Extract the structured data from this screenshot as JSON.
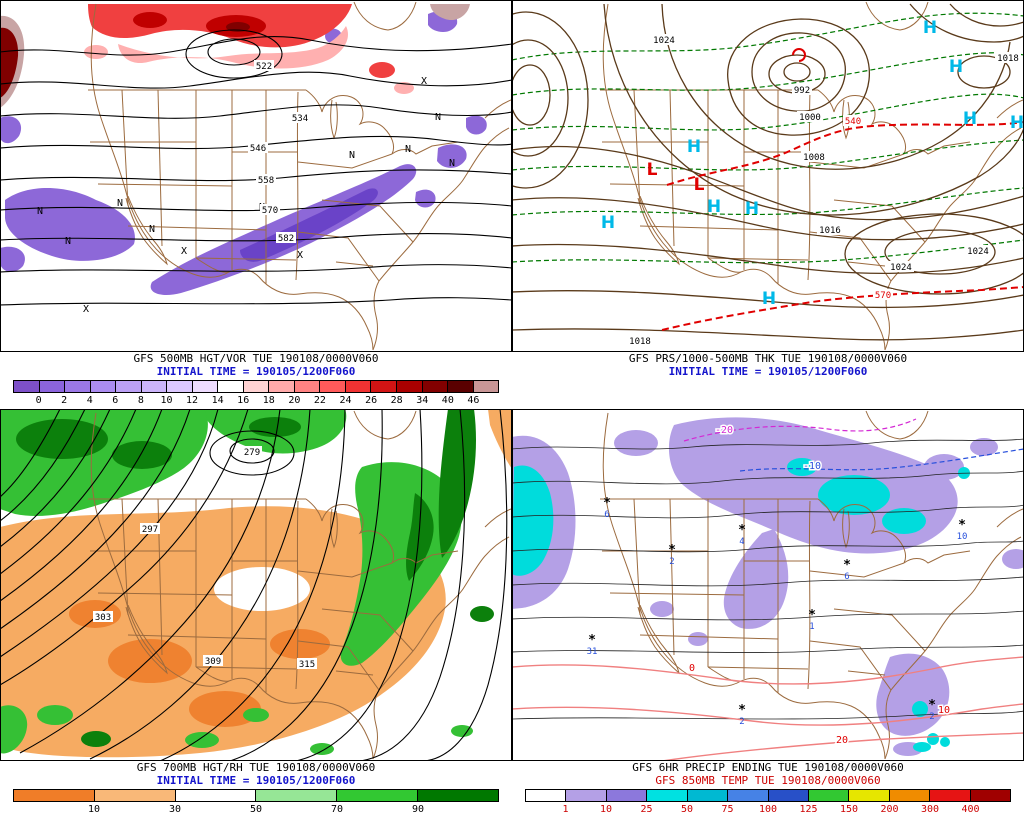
{
  "palette": {
    "map_outline": "#9c6b3f",
    "height_contour": "#000000",
    "isobar_brown": "#5a3a1a",
    "thickness_green": "#007800",
    "thickness_red": "#e00000",
    "vorticity_purple": "#8d68d8",
    "vorticity_red": "#f04040",
    "vorticity_dark_red": "#800000",
    "rh_orange": "#f6ab62",
    "rh_green": "#35c035",
    "precip_purple": "#b4a0e6",
    "precip_cyan": "#00dcdc",
    "warm_isotherm_pink": "#f08080",
    "cold_isotherm_blue": "#2850dc",
    "cold_isotherm_magenta": "#d428d4",
    "initial_time_blue": "#1414cc",
    "high_symbol_cyan": "#00b9e8",
    "low_symbol_red": "#e00000",
    "temp_title_red": "#cc0000"
  },
  "panels": [
    {
      "name": "500mb-height-vorticity",
      "title": "GFS 500MB HGT/VOR TUE 190108/0000V060",
      "initial_time": "INITIAL TIME = 190105/1200F060",
      "height_labels": [
        "522",
        "534",
        "546",
        "558",
        "570",
        "582"
      ],
      "symbol_min": "N",
      "symbol_max": "X",
      "colorbar": {
        "labels": [
          "0",
          "2",
          "4",
          "6",
          "8",
          "10",
          "12",
          "14",
          "16",
          "18",
          "20",
          "22",
          "24",
          "26",
          "28",
          "34",
          "40",
          "46"
        ],
        "colors": [
          "#7d50c8",
          "#8b64dc",
          "#9b78e6",
          "#ab8cf0",
          "#bba0f5",
          "#cbb4fa",
          "#dcc8ff",
          "#eedcff",
          "#ffffff",
          "#ffd2d2",
          "#ffaaaa",
          "#ff8282",
          "#ff5a5a",
          "#f03232",
          "#d21414",
          "#aa0000",
          "#820000",
          "#5a0000",
          "#c89696"
        ],
        "label_color": "#000000"
      }
    },
    {
      "name": "mslp-1000-500-thickness",
      "title": "GFS PRS/1000-500MB THK TUE 190108/0000V060",
      "initial_time": "INITIAL TIME = 190105/1200F060",
      "pressure_labels": [
        "1024",
        "992",
        "1000",
        "1008",
        "1016",
        "1024",
        "1024",
        "1018",
        "1018"
      ],
      "thickness_labels": [
        "540",
        "570"
      ],
      "high_symbol": "H",
      "low_symbol": "L"
    },
    {
      "name": "700mb-height-rh",
      "title": "GFS 700MB HGT/RH TUE 190108/0000V060",
      "initial_time": "INITIAL TIME = 190105/1200F060",
      "height_labels": [
        "279",
        "297",
        "303",
        "309",
        "315"
      ],
      "colorbar": {
        "labels": [
          "10",
          "30",
          "50",
          "70",
          "90"
        ],
        "colors": [
          "#f07d28",
          "#f9b878",
          "#ffffff",
          "#96e696",
          "#32c832",
          "#007800"
        ],
        "label_color": "#000000"
      }
    },
    {
      "name": "6hr-precip-850mb-temp",
      "title": "GFS 6HR PRECIP ENDING TUE 190108/0000V060",
      "title2": "GFS 850MB TEMP TUE 190108/0000V060",
      "snow_symbol": "*",
      "precip_marks": [
        "6",
        "2",
        "4",
        "6",
        "31",
        "1",
        "2",
        "2",
        "10"
      ],
      "temp_labels": {
        "zero": "0",
        "ten": "10",
        "twenty": "20",
        "minus10": "-10",
        "minus20": "-20"
      },
      "colorbar": {
        "labels": [
          "1",
          "10",
          "25",
          "50",
          "75",
          "100",
          "125",
          "150",
          "200",
          "300",
          "400"
        ],
        "colors": [
          "#ffffff",
          "#b4a0e6",
          "#8c78dc",
          "#00e1e1",
          "#00b9d2",
          "#4682e6",
          "#2850c8",
          "#32c832",
          "#e6e600",
          "#f08c00",
          "#e61414",
          "#a00000"
        ],
        "label_color": "#cc0000"
      }
    }
  ]
}
